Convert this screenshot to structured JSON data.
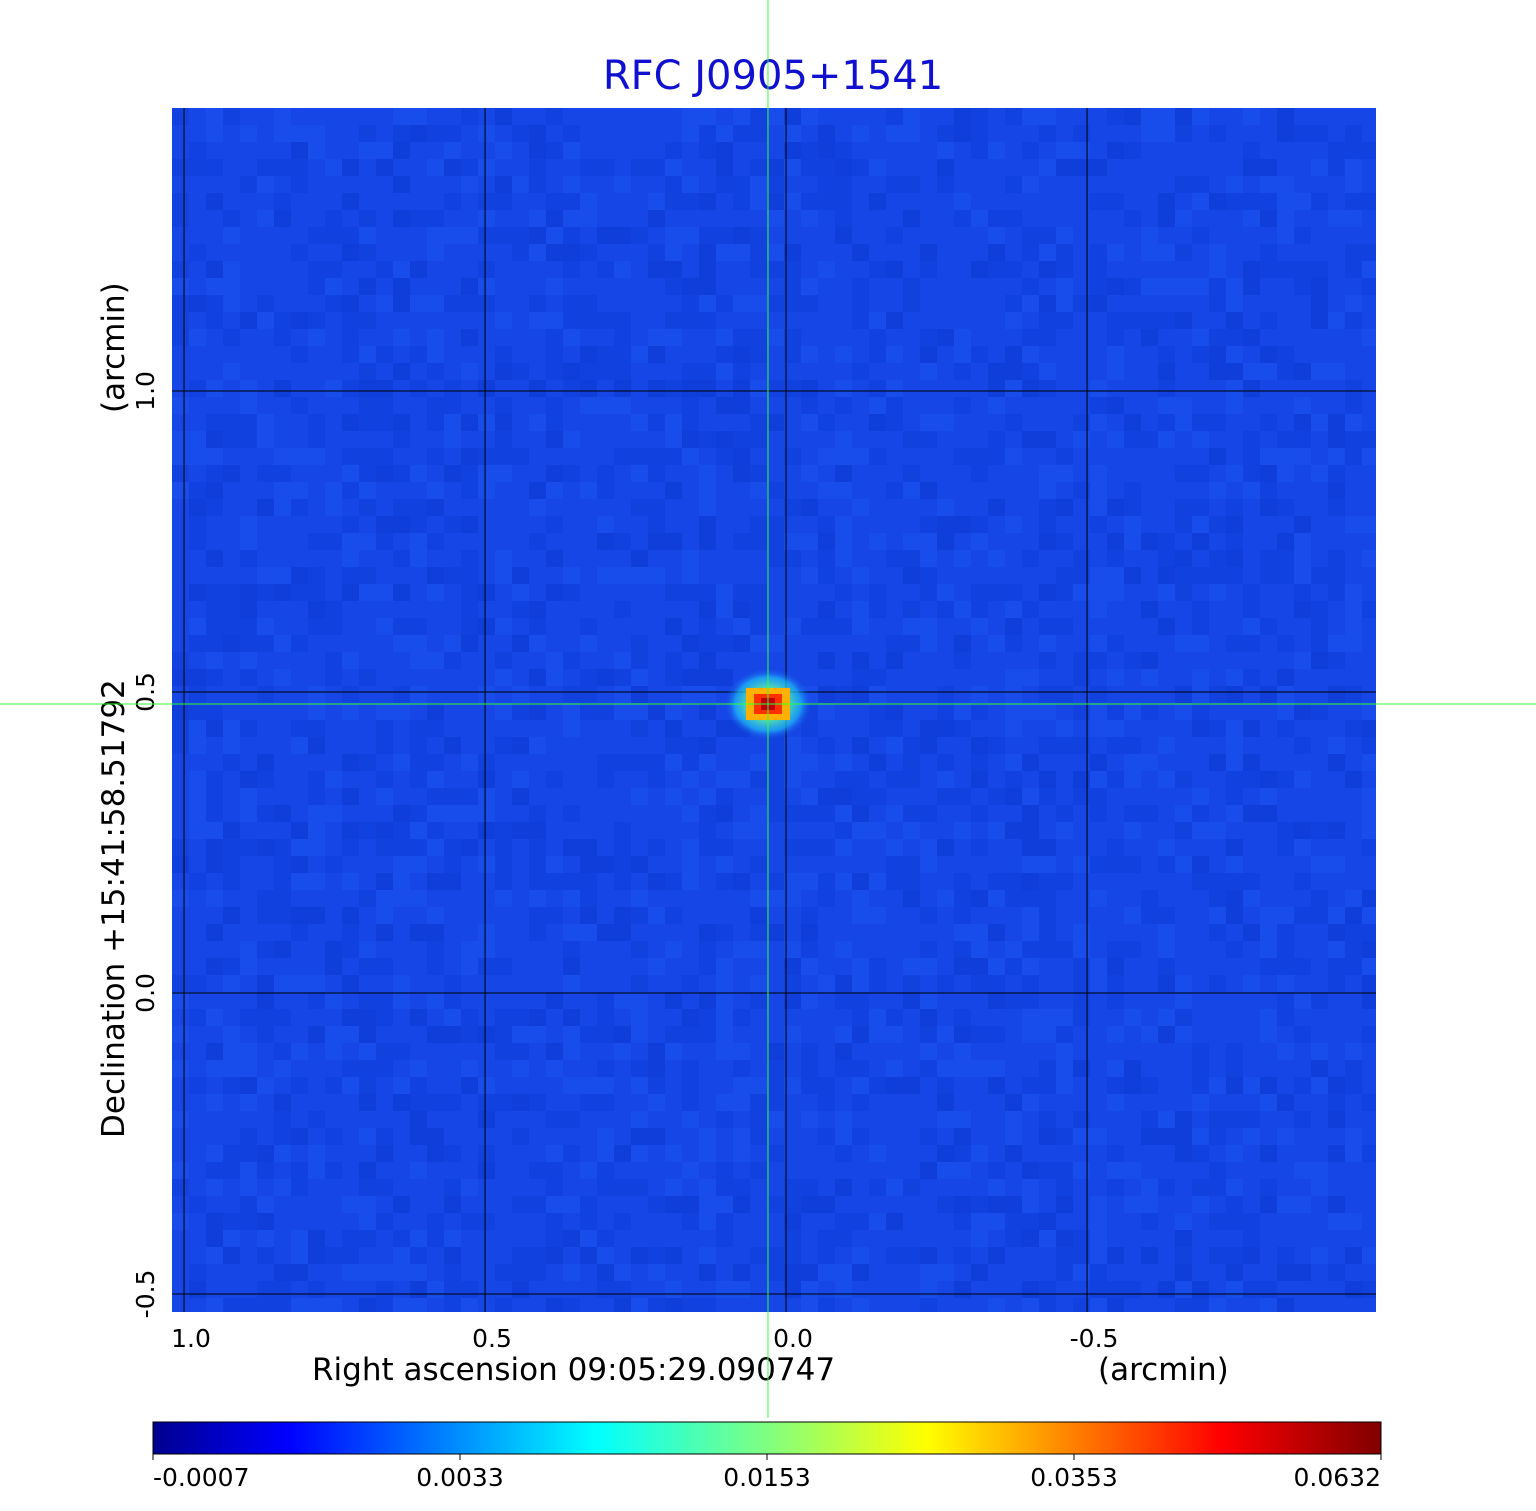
{
  "chart_data": {
    "type": "heatmap",
    "title": "RFC J0905+1541",
    "xlabel": "Right ascension  09:05:29.090747",
    "xunit": "(arcmin)",
    "ylabel": "Declination  +15:41:58.51792",
    "yunit": "(arcmin)",
    "x_ticks": [
      "1.0",
      "0.5",
      "0.0",
      "-0.5"
    ],
    "x_tick_values": [
      1.0,
      0.5,
      0.0,
      -0.5
    ],
    "y_ticks": [
      "1.0",
      "0.5",
      "0.0",
      "-0.5"
    ],
    "y_tick_values": [
      1.0,
      0.5,
      0.0,
      -0.5
    ],
    "xlim": [
      1.02,
      -0.98
    ],
    "ylim": [
      -0.53,
      1.47
    ],
    "grid": true,
    "colormap": "jet",
    "colorbar_ticks": [
      "-0.0007",
      "0.0033",
      "0.0153",
      "0.0353",
      "0.0632"
    ],
    "colorbar_range": [
      -0.0007,
      0.0632
    ],
    "peak": {
      "x": 0.03,
      "y": 0.48,
      "value": 0.0632
    },
    "crosshair": {
      "x": 0.03,
      "y": 0.48
    },
    "colors": {
      "background": "#1646e6",
      "crosshair": "#33ff33",
      "grid": "#000000",
      "title": "#1010d0"
    }
  }
}
